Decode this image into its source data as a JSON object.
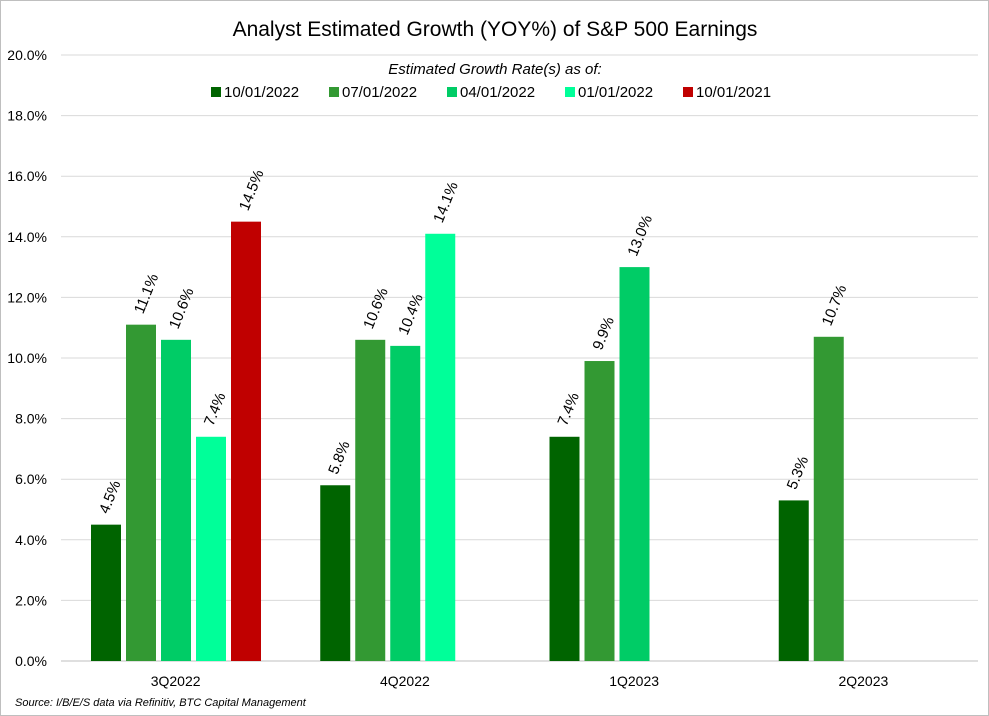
{
  "chart_data": {
    "type": "bar",
    "title": "Analyst Estimated Growth (YOY%) of S&P 500 Earnings",
    "legend_title": "Estimated Growth Rate(s) as of:",
    "legend_position": "top",
    "categories": [
      "3Q2022",
      "4Q2022",
      "1Q2023",
      "2Q2023"
    ],
    "y_ticks": [
      "0.0%",
      "2.0%",
      "4.0%",
      "6.0%",
      "8.0%",
      "10.0%",
      "12.0%",
      "14.0%",
      "16.0%",
      "18.0%",
      "20.0%"
    ],
    "ylim": [
      0,
      20
    ],
    "grid": true,
    "series": [
      {
        "name": "10/01/2022",
        "color": "#006400",
        "values": [
          4.5,
          5.8,
          7.4,
          5.3
        ],
        "labels": [
          "4.5%",
          "5.8%",
          "7.4%",
          "5.3%"
        ]
      },
      {
        "name": "07/01/2022",
        "color": "#339933",
        "values": [
          11.1,
          10.6,
          9.9,
          10.7
        ],
        "labels": [
          "11.1%",
          "10.6%",
          "9.9%",
          "10.7%"
        ]
      },
      {
        "name": "04/01/2022",
        "color": "#00cc66",
        "values": [
          10.6,
          10.4,
          13.0,
          null
        ],
        "labels": [
          "10.6%",
          "10.4%",
          "13.0%",
          null
        ]
      },
      {
        "name": "01/01/2022",
        "color": "#00ff99",
        "values": [
          7.4,
          14.1,
          null,
          null
        ],
        "labels": [
          "7.4%",
          "14.1%",
          null,
          null
        ]
      },
      {
        "name": "10/01/2021",
        "color": "#c00000",
        "values": [
          14.5,
          null,
          null,
          null
        ],
        "labels": [
          "14.5%",
          null,
          null,
          null
        ]
      }
    ]
  },
  "source_note": "Source: I/B/E/S data via Refinitiv, BTC Capital Management"
}
